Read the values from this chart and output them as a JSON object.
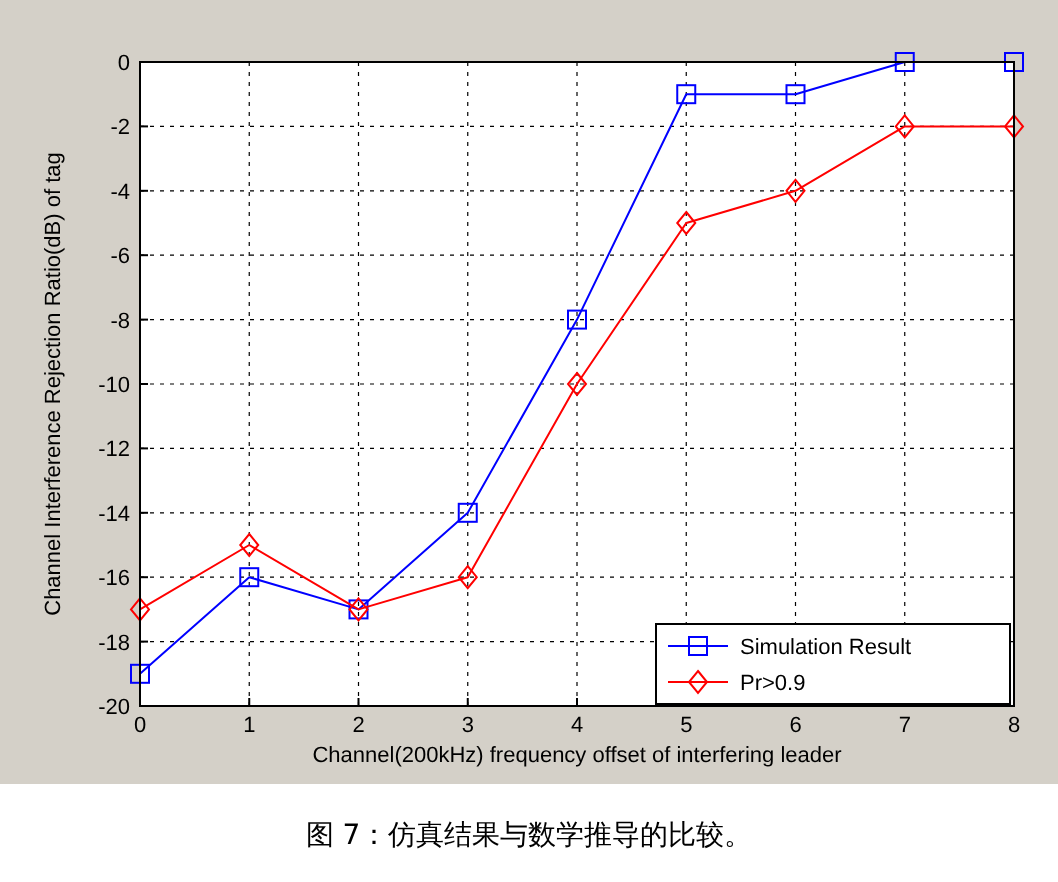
{
  "chart_data": {
    "type": "line",
    "xlabel": "Channel(200kHz) frequency offset of interfering leader",
    "ylabel": "Channel Interference Rejection Ratio(dB) of tag",
    "annotations": [
      "图 7：仿真结果与数学推导的比较。"
    ],
    "x": [
      0,
      1,
      2,
      3,
      4,
      5,
      6,
      7,
      8
    ],
    "series": [
      {
        "name": "Simulation Result",
        "color": "#0000ff",
        "marker": "square",
        "values": [
          -19,
          -16,
          -17,
          -14,
          -8,
          -1,
          -1,
          0,
          0
        ]
      },
      {
        "name": "Pr>0.9",
        "color": "#ff0000",
        "marker": "diamond",
        "values": [
          -17,
          -15,
          -17,
          -16,
          -10,
          -5,
          -4,
          -2,
          -2
        ]
      }
    ],
    "xlim": [
      0,
      8
    ],
    "xticks": [
      0,
      1,
      2,
      3,
      4,
      5,
      6,
      7,
      8
    ],
    "ylim": [
      -20,
      0
    ],
    "yticks": [
      -20,
      -18,
      -16,
      -14,
      -12,
      -10,
      -8,
      -6,
      -4,
      -2,
      0
    ],
    "grid": true,
    "legend": "bottom right",
    "line_style": "solid"
  }
}
